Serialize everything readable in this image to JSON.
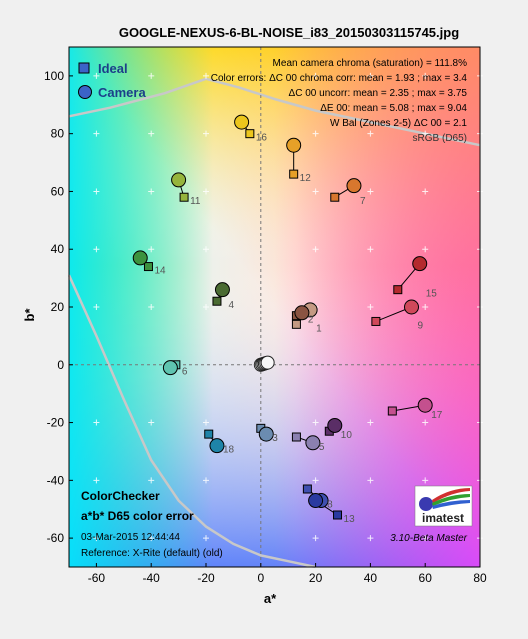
{
  "chart_data": {
    "type": "scatter",
    "title": "GOOGLE-NEXUS-6-BL-NOISE_i83_20150303115745.jpg",
    "xlabel": "a*",
    "ylabel": "b*",
    "xlim": [
      -70,
      80
    ],
    "ylim": [
      -70,
      110
    ],
    "x_ticks": [
      "-60",
      "-40",
      "-20",
      "0",
      "20",
      "40",
      "60",
      "80"
    ],
    "y_ticks": [
      "100",
      "80",
      "60",
      "40",
      "20",
      "0",
      "-20",
      "-40",
      "-60"
    ],
    "legend": {
      "placement": "top-left",
      "ideal_label": "Ideal",
      "camera_label": "Camera"
    },
    "stats": [
      "Mean camera chroma (saturation) = 111.8%",
      "Color errors: ΔC 00 chroma corr:  mean = 1.93 ;  max = 3.4",
      "ΔC 00 uncorr:  mean = 2.35 ;  max = 3.75",
      "ΔE 00:  mean = 5.08 ;  max = 9.04",
      "W Bal (Zones 2-5) ΔC 00 = 2.1",
      "sRGB (D65)"
    ],
    "bottom_left": [
      "ColorChecker",
      "a*b* D65 color error",
      "03-Mar-2015 12:44:44",
      "Reference: X-Rite (default) (old)"
    ],
    "version_label": "3.10-Beta  Master",
    "logo_text": "imatest",
    "patches": [
      {
        "id": "1",
        "ideal": [
          13,
          14
        ],
        "camera": [
          18,
          19
        ],
        "color": "#c49a83"
      },
      {
        "id": "2",
        "ideal": [
          13,
          17
        ],
        "camera": [
          15,
          18
        ],
        "color": "#8a5442"
      },
      {
        "id": "3",
        "ideal": [
          0,
          -22
        ],
        "camera": [
          2,
          -24
        ],
        "color": "#6b8cb0"
      },
      {
        "id": "4",
        "ideal": [
          -16,
          22
        ],
        "camera": [
          -14,
          26
        ],
        "color": "#4a6b32"
      },
      {
        "id": "5",
        "ideal": [
          13,
          -25
        ],
        "camera": [
          19,
          -27
        ],
        "color": "#8b80b0"
      },
      {
        "id": "6",
        "ideal": [
          -31,
          0
        ],
        "camera": [
          -33,
          -1
        ],
        "color": "#5fc4b0"
      },
      {
        "id": "7",
        "ideal": [
          27,
          58
        ],
        "camera": [
          34,
          62
        ],
        "color": "#d8772e"
      },
      {
        "id": "8",
        "ideal": [
          17,
          -43
        ],
        "camera": [
          22,
          -47
        ],
        "color": "#3e4fb0"
      },
      {
        "id": "9",
        "ideal": [
          42,
          15
        ],
        "camera": [
          55,
          20
        ],
        "color": "#d0485a"
      },
      {
        "id": "10",
        "ideal": [
          25,
          -23
        ],
        "camera": [
          27,
          -21
        ],
        "color": "#5a2e66"
      },
      {
        "id": "11",
        "ideal": [
          -28,
          58
        ],
        "camera": [
          -30,
          64
        ],
        "color": "#96b43c"
      },
      {
        "id": "12",
        "ideal": [
          12,
          66
        ],
        "camera": [
          12,
          76
        ],
        "color": "#e6a028"
      },
      {
        "id": "13",
        "ideal": [
          28,
          -52
        ],
        "camera": [
          20,
          -47
        ],
        "color": "#2a3aa0"
      },
      {
        "id": "14",
        "ideal": [
          -41,
          34
        ],
        "camera": [
          -44,
          37
        ],
        "color": "#3c923e"
      },
      {
        "id": "15",
        "ideal": [
          50,
          26
        ],
        "camera": [
          58,
          35
        ],
        "color": "#b42a2e"
      },
      {
        "id": "16",
        "ideal": [
          -4,
          80
        ],
        "camera": [
          -7,
          84
        ],
        "color": "#ecc61c"
      },
      {
        "id": "17",
        "ideal": [
          48,
          -16
        ],
        "camera": [
          60,
          -14
        ],
        "color": "#c4508e"
      },
      {
        "id": "18",
        "ideal": [
          -19,
          -24
        ],
        "camera": [
          -16,
          -28
        ],
        "color": "#1e84a8"
      }
    ],
    "neutrals": [
      0,
      0.5,
      1,
      1.5,
      2,
      2.5
    ],
    "gamut_curve": [
      [
        -70,
        86
      ],
      [
        -55,
        89
      ],
      [
        -35,
        94
      ],
      [
        -20,
        99
      ],
      [
        -8,
        96
      ],
      [
        5,
        92
      ],
      [
        20,
        88
      ],
      [
        40,
        84
      ],
      [
        60,
        80
      ],
      [
        80,
        76
      ]
    ],
    "gamut_curve_lower": [
      [
        -70,
        31
      ],
      [
        -60,
        10
      ],
      [
        -50,
        -12
      ],
      [
        -40,
        -33
      ],
      [
        -30,
        -47
      ],
      [
        -20,
        -56
      ],
      [
        -10,
        -62
      ],
      [
        0,
        -66
      ],
      [
        10,
        -68
      ],
      [
        20,
        -70
      ]
    ]
  }
}
